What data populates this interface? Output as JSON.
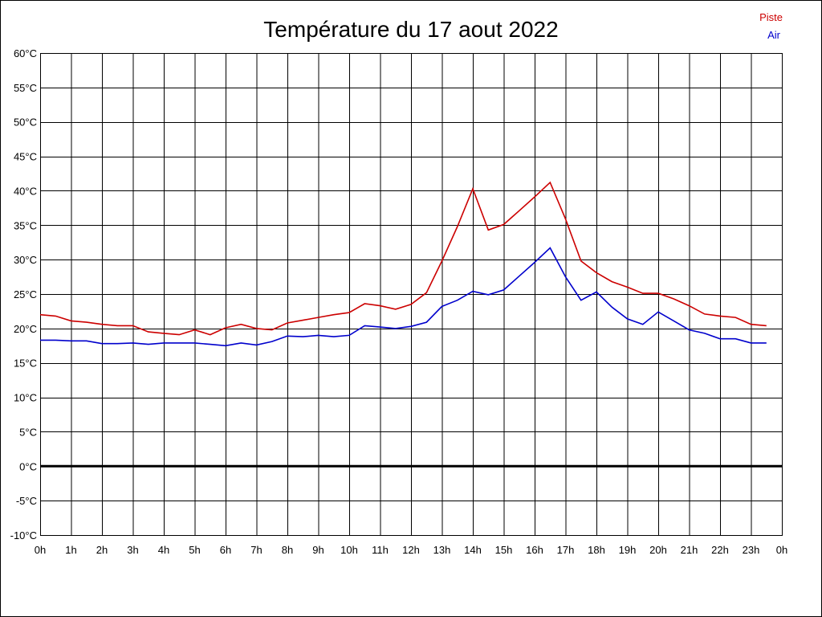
{
  "chart_data": {
    "type": "line",
    "title": "Température du 17 aout 2022",
    "xlabel": "",
    "ylabel": "",
    "ylim": [
      -10,
      60
    ],
    "y_ticks": [
      60,
      55,
      50,
      45,
      40,
      35,
      30,
      25,
      20,
      15,
      10,
      5,
      0,
      -5,
      -10
    ],
    "y_tick_labels": [
      "60°C",
      "55°C",
      "50°C",
      "45°C",
      "40°C",
      "35°C",
      "30°C",
      "25°C",
      "20°C",
      "15°C",
      "10°C",
      "5°C",
      "0°C",
      "-5°C",
      "-10°C"
    ],
    "x_range_hours": [
      0,
      24
    ],
    "x_ticks": [
      0,
      1,
      2,
      3,
      4,
      5,
      6,
      7,
      8,
      9,
      10,
      11,
      12,
      13,
      14,
      15,
      16,
      17,
      18,
      19,
      20,
      21,
      22,
      23,
      24
    ],
    "x_tick_labels": [
      "0h",
      "1h",
      "2h",
      "3h",
      "4h",
      "5h",
      "6h",
      "7h",
      "8h",
      "9h",
      "10h",
      "11h",
      "12h",
      "13h",
      "14h",
      "15h",
      "16h",
      "17h",
      "18h",
      "19h",
      "20h",
      "21h",
      "22h",
      "23h",
      "0h"
    ],
    "grid": true,
    "legend_position": "top-right",
    "zero_line": true,
    "series": [
      {
        "name": "Piste",
        "color": "#cc0000",
        "x": [
          0,
          0.5,
          1,
          1.5,
          2,
          2.5,
          3,
          3.5,
          4,
          4.5,
          5,
          5.5,
          6,
          6.5,
          7,
          7.5,
          8,
          8.5,
          9,
          9.5,
          10,
          10.5,
          11,
          11.5,
          12,
          12.5,
          13,
          13.5,
          14,
          14.5,
          15,
          15.5,
          16,
          16.5,
          17,
          17.5,
          18,
          18.5,
          19,
          19.5,
          20,
          20.5,
          21,
          21.5,
          22,
          22.5,
          23,
          23.5
        ],
        "values": [
          22.0,
          21.8,
          21.1,
          20.9,
          20.6,
          20.4,
          20.4,
          19.5,
          19.3,
          19.1,
          19.8,
          19.1,
          20.1,
          20.6,
          20.0,
          19.8,
          20.8,
          21.2,
          21.6,
          22.0,
          22.3,
          23.6,
          23.3,
          22.8,
          23.5,
          25.2,
          29.8,
          34.8,
          40.3,
          34.3,
          35.1,
          37.1,
          39.1,
          41.2,
          35.9,
          29.8,
          28.1,
          26.8,
          26.0,
          25.1,
          25.1,
          24.3,
          23.3,
          22.1,
          21.8,
          21.6,
          20.6,
          20.4
        ]
      },
      {
        "name": "Air",
        "color": "#0000cc",
        "x": [
          0,
          0.5,
          1,
          1.5,
          2,
          2.5,
          3,
          3.5,
          4,
          4.5,
          5,
          5.5,
          6,
          6.5,
          7,
          7.5,
          8,
          8.5,
          9,
          9.5,
          10,
          10.5,
          11,
          11.5,
          12,
          12.5,
          13,
          13.5,
          14,
          14.5,
          15,
          15.5,
          16,
          16.5,
          17,
          17.5,
          18,
          18.5,
          19,
          19.5,
          20,
          20.5,
          21,
          21.5,
          22,
          22.5,
          23,
          23.5
        ],
        "values": [
          18.3,
          18.3,
          18.2,
          18.2,
          17.8,
          17.8,
          17.9,
          17.7,
          17.9,
          17.9,
          17.9,
          17.7,
          17.5,
          17.9,
          17.6,
          18.1,
          18.9,
          18.8,
          19.0,
          18.8,
          19.0,
          20.4,
          20.2,
          20.0,
          20.3,
          20.9,
          23.2,
          24.1,
          25.4,
          24.9,
          25.6,
          27.6,
          29.6,
          31.7,
          27.5,
          24.1,
          25.3,
          23.1,
          21.4,
          20.6,
          22.4,
          21.1,
          19.8,
          19.3,
          18.5,
          18.5,
          17.9,
          17.9
        ]
      }
    ]
  }
}
